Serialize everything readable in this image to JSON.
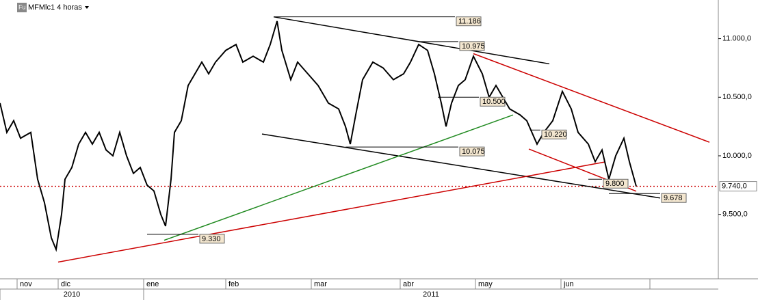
{
  "chart_data": {
    "type": "line",
    "title": "MFMlc1 4 horas",
    "icon": "Fu",
    "series": [
      {
        "name": "MFMlc1",
        "color": "#000000",
        "x": [
          0,
          2,
          4,
          6,
          9,
          11,
          13,
          15,
          16.4,
          18,
          19,
          21,
          23,
          25,
          27,
          29,
          31,
          33,
          35,
          37,
          39,
          41,
          43,
          45,
          47,
          48.4,
          50,
          51,
          53,
          55,
          57,
          59,
          61,
          63,
          66,
          69,
          71,
          74,
          77,
          79,
          81,
          82.4,
          85,
          87,
          90,
          93,
          96,
          99,
          101,
          102.4,
          104,
          106,
          109,
          112,
          115,
          118,
          120,
          122.4,
          125,
          127,
          129,
          130.4,
          132,
          134,
          136,
          138.4,
          141,
          143,
          145,
          147,
          149,
          152,
          154,
          157,
          159,
          161.6,
          164.4,
          167,
          169,
          172,
          174,
          176,
          178,
          180,
          182.4,
          184,
          186
        ],
        "values": [
          10450,
          10200,
          10300,
          10150,
          10200,
          9800,
          9600,
          9300,
          9200,
          9500,
          9800,
          9900,
          10100,
          10200,
          10100,
          10200,
          10050,
          10000,
          10200,
          10000,
          9850,
          9900,
          9750,
          9700,
          9500,
          9400,
          9800,
          10200,
          10300,
          10600,
          10700,
          10800,
          10700,
          10800,
          10900,
          10950,
          10800,
          10850,
          10800,
          10950,
          11150,
          10900,
          10650,
          10800,
          10700,
          10600,
          10450,
          10400,
          10250,
          10100,
          10350,
          10650,
          10800,
          10750,
          10650,
          10700,
          10800,
          10950,
          10900,
          10700,
          10450,
          10250,
          10450,
          10600,
          10650,
          10850,
          10700,
          10500,
          10600,
          10500,
          10400,
          10350,
          10300,
          10100,
          10200,
          10300,
          10550,
          10400,
          10200,
          10100,
          9950,
          10050,
          9800,
          10000,
          10150,
          9950,
          9740
        ]
      }
    ],
    "xlim": [
      0,
      210
    ],
    "ylim": [
      8950,
      11330
    ],
    "xticks": [
      5,
      17,
      42,
      66,
      91,
      117,
      139,
      164,
      190
    ],
    "months": [
      "nov",
      "dic",
      "ene",
      "feb",
      "mar",
      "abr",
      "may",
      "jun"
    ],
    "years": [
      {
        "label": "2010",
        "span": [
          0,
          42
        ]
      },
      {
        "label": "2011",
        "span": [
          42,
          210
        ]
      }
    ],
    "yticks": [
      {
        "value": 9500,
        "label": "9.500,0"
      },
      {
        "value": 10000,
        "label": "10.000,0"
      },
      {
        "value": 10500,
        "label": "10.500,0"
      },
      {
        "value": 11000,
        "label": "11.000,0"
      }
    ],
    "last": {
      "value": 9740,
      "label": "9.740,0",
      "color": "#cc0000"
    },
    "levels": [
      {
        "value": 11186,
        "label": "11.186",
        "x": [
          80,
          133
        ]
      },
      {
        "value": 10975,
        "label": "10.975",
        "x": [
          122,
          134
        ]
      },
      {
        "value": 10500,
        "label": "10.500",
        "x": [
          128,
          140
        ]
      },
      {
        "value": 10220,
        "label": "10.220",
        "x": [
          155,
          158
        ]
      },
      {
        "value": 10075,
        "label": "10.075",
        "x": [
          101,
          134
        ]
      },
      {
        "value": 9330,
        "label": "9.330",
        "x": [
          43,
          58
        ]
      },
      {
        "value": 9800,
        "label": "9.800",
        "x": [
          172,
          176
        ]
      },
      {
        "value": 9678,
        "label": "9.678",
        "x": [
          178,
          193
        ]
      }
    ],
    "trendlines": [
      {
        "x": [
          80,
          160.6
        ],
        "y": [
          11186,
          10785
        ],
        "color": "#000000"
      },
      {
        "x": [
          138.4,
          207.4
        ],
        "y": [
          10872,
          10116
        ],
        "color": "#cc0000"
      },
      {
        "x": [
          76.6,
          193
        ],
        "y": [
          10186,
          9640
        ],
        "color": "#000000"
      },
      {
        "x": [
          48,
          150
        ],
        "y": [
          9279,
          10349
        ],
        "color": "#228b22"
      },
      {
        "x": [
          17,
          177
        ],
        "y": [
          9093,
          9948
        ],
        "color": "#cc0000"
      },
      {
        "x": [
          154.6,
          186
        ],
        "y": [
          10058,
          9698
        ],
        "color": "#cc0000"
      }
    ]
  }
}
